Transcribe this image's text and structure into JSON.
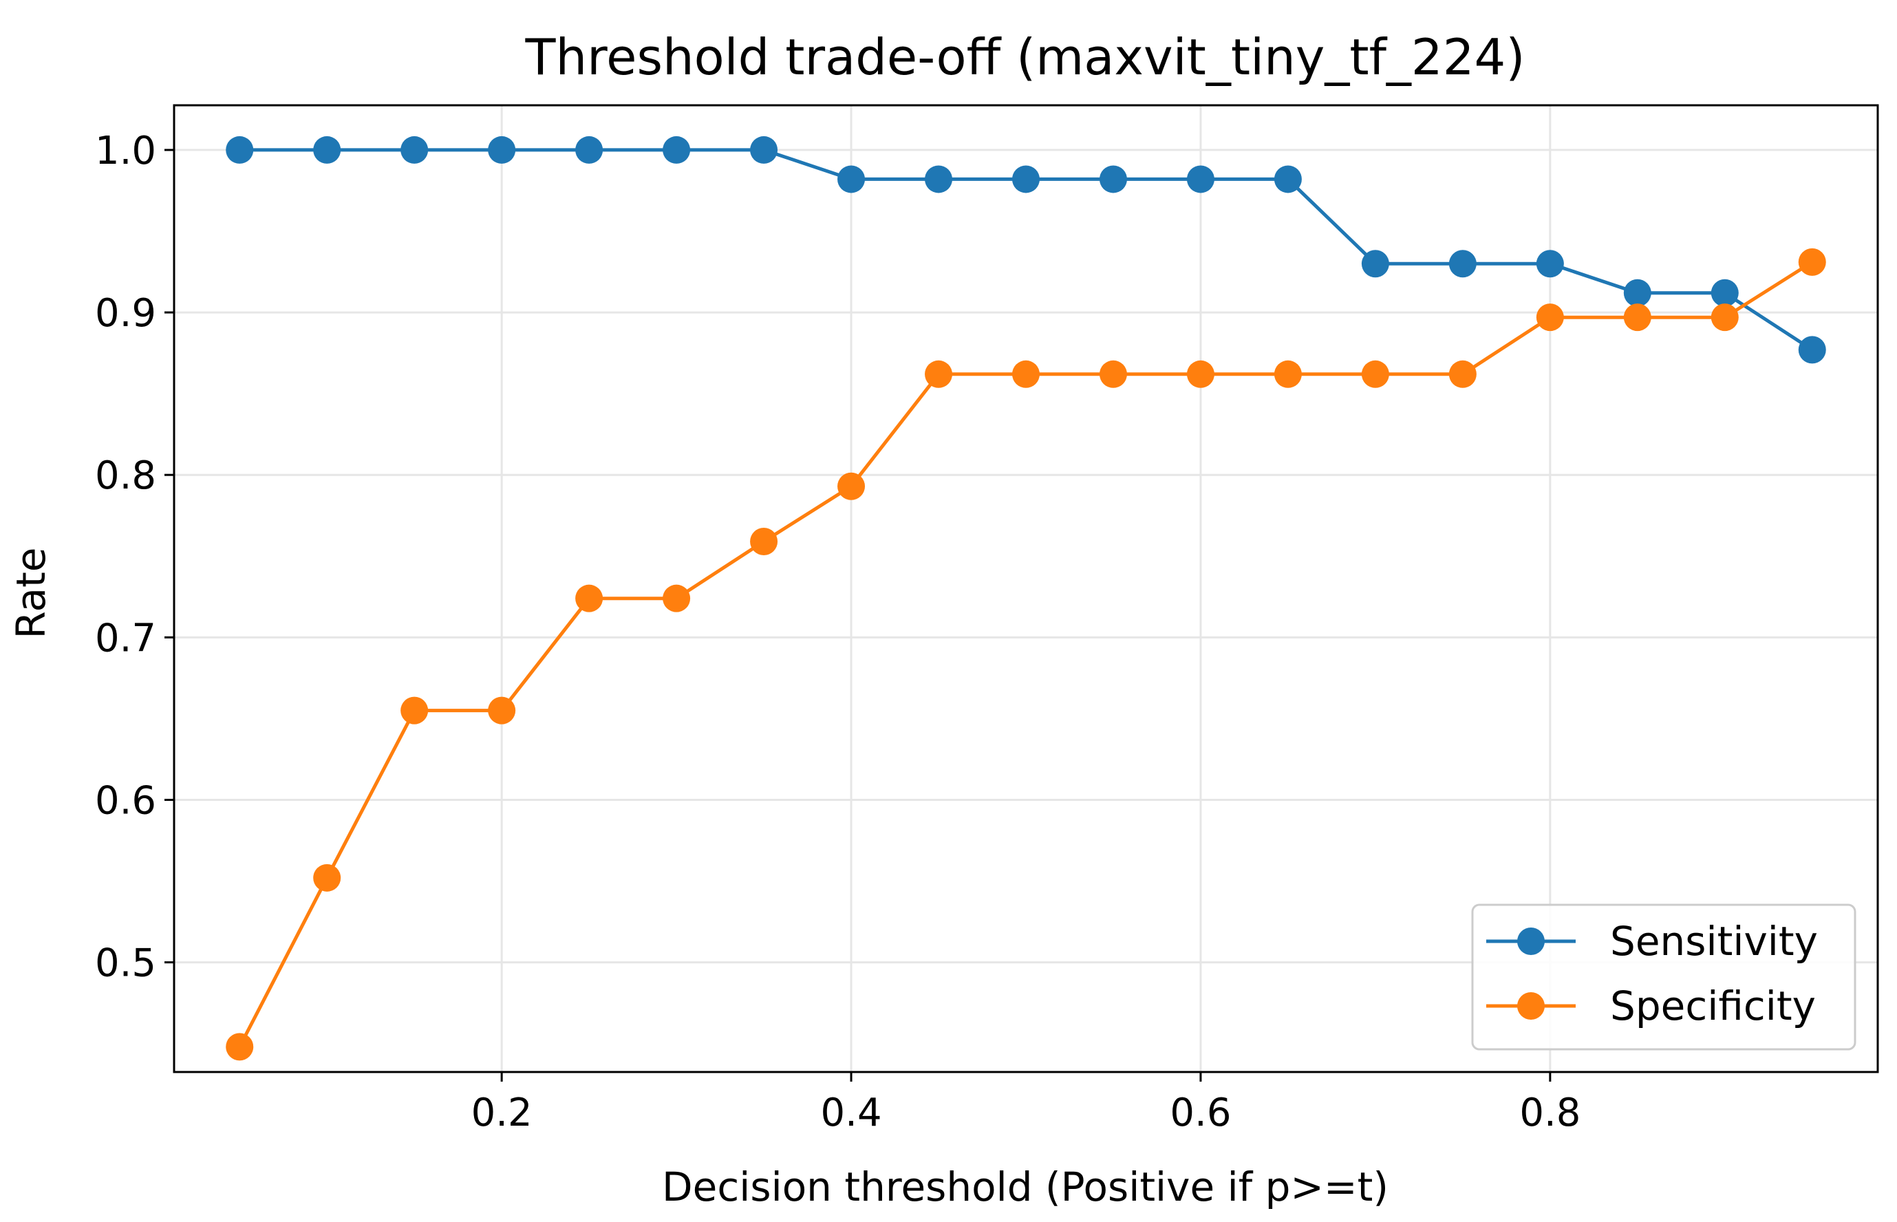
{
  "chart_data": {
    "type": "line",
    "title": "Threshold trade-off (maxvit_tiny_tf_224)",
    "xlabel": "Decision threshold (Positive if p>=t)",
    "ylabel": "Rate",
    "xlim": [
      0.0125,
      0.9875
    ],
    "ylim": [
      0.4325,
      1.0275
    ],
    "xticks": [
      0.2,
      0.4,
      0.6,
      0.8
    ],
    "xtick_labels": [
      "0.2",
      "0.4",
      "0.6",
      "0.8"
    ],
    "yticks": [
      0.5,
      0.6,
      0.7,
      0.8,
      0.9,
      1.0
    ],
    "ytick_labels": [
      "0.5",
      "0.6",
      "0.7",
      "0.8",
      "0.9",
      "1.0"
    ],
    "grid": true,
    "legend_position": "lower-right",
    "x": [
      0.05,
      0.1,
      0.15,
      0.2,
      0.25,
      0.3,
      0.35,
      0.4,
      0.45,
      0.5,
      0.55,
      0.6,
      0.65,
      0.7,
      0.75,
      0.8,
      0.85,
      0.9,
      0.95
    ],
    "series": [
      {
        "name": "Sensitivity",
        "color": "#1f77b4",
        "values": [
          1.0,
          1.0,
          1.0,
          1.0,
          1.0,
          1.0,
          1.0,
          0.982,
          0.982,
          0.982,
          0.982,
          0.982,
          0.982,
          0.93,
          0.93,
          0.93,
          0.912,
          0.912,
          0.877
        ]
      },
      {
        "name": "Specificity",
        "color": "#ff7f0e",
        "values": [
          0.448,
          0.552,
          0.655,
          0.655,
          0.724,
          0.724,
          0.759,
          0.793,
          0.862,
          0.862,
          0.862,
          0.862,
          0.862,
          0.862,
          0.862,
          0.897,
          0.897,
          0.897,
          0.931
        ]
      }
    ]
  }
}
